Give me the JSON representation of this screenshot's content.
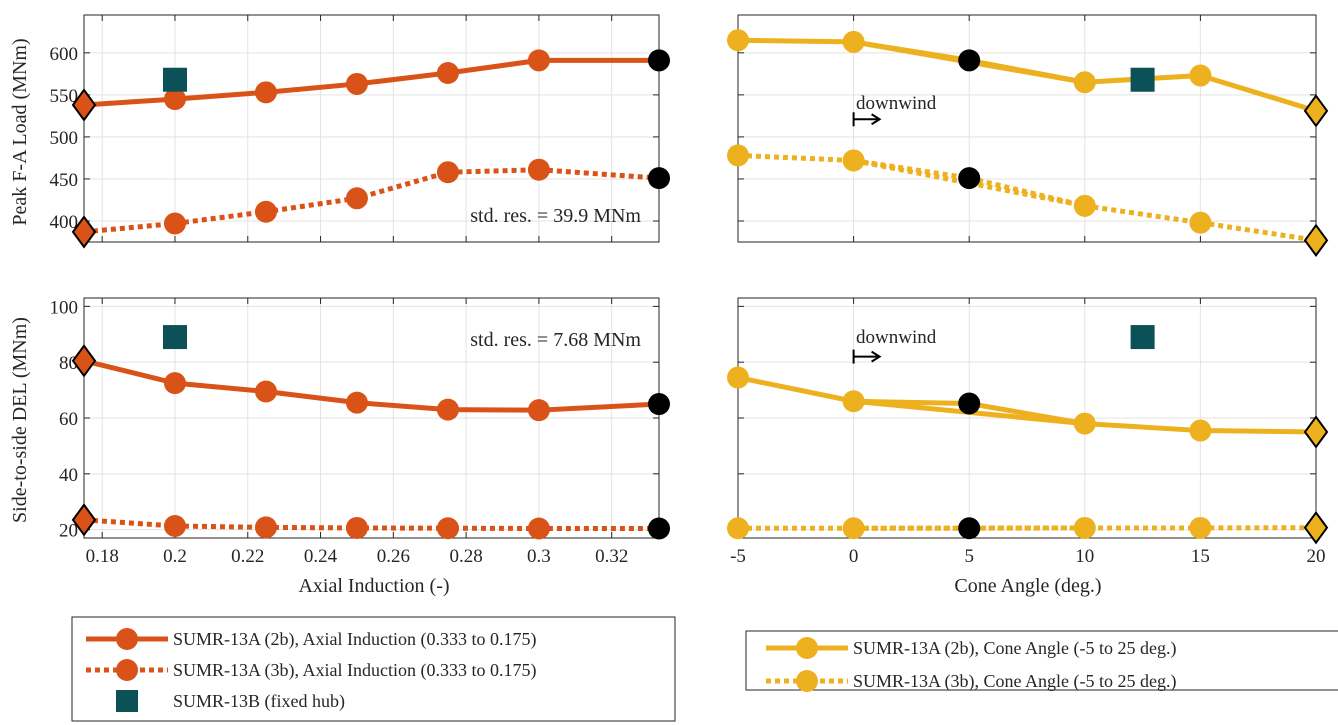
{
  "colors": {
    "induction": "#D95319",
    "cone": "#EDB120",
    "fixed_hub": "#0B5157",
    "baseline": "#000000",
    "grid": "#E3E3E3",
    "axis": "#262626"
  },
  "axis_labels": {
    "top_ylabel": "Peak F-A Load (MNm)",
    "bottom_ylabel": "Side-to-side DEL (MNm)",
    "left_xlabel": "Axial Induction (-)",
    "right_xlabel": "Cone Angle (deg.)"
  },
  "annotations": {
    "std_res_top": "std. res. = 39.9 MNm",
    "std_res_bottom": "std. res. = 7.68 MNm",
    "downwind_top": "downwind",
    "downwind_bottom": "downwind"
  },
  "legend_left": [
    {
      "label": "SUMR-13A (2b), Axial Induction (0.333 to 0.175)",
      "style": "solid",
      "color": "induction",
      "marker": "circle"
    },
    {
      "label": "SUMR-13A (3b), Axial Induction (0.333 to 0.175)",
      "style": "dotted",
      "color": "induction",
      "marker": "circle"
    },
    {
      "label": "SUMR-13B (fixed hub)",
      "style": "none",
      "color": "fixed_hub",
      "marker": "square"
    }
  ],
  "legend_right": [
    {
      "label": "SUMR-13A (2b), Cone Angle (-5 to 25 deg.)",
      "style": "solid",
      "color": "cone",
      "marker": "circle"
    },
    {
      "label": "SUMR-13A (3b), Cone Angle (-5 to 25 deg.)",
      "style": "dotted",
      "color": "cone",
      "marker": "circle"
    }
  ],
  "chart_data": [
    {
      "type": "line",
      "id": "induction-peak",
      "xlabel": "",
      "ylabel": "Peak F-A Load (MNm)",
      "xlim": [
        0.175,
        0.333
      ],
      "ylim": [
        375,
        645
      ],
      "xticks": [
        0.18,
        0.2,
        0.22,
        0.24,
        0.26,
        0.28,
        0.3,
        0.32
      ],
      "xtick_labels": [
        "",
        "",
        "",
        "",
        "",
        "",
        "",
        ""
      ],
      "yticks": [
        400,
        450,
        500,
        550,
        600
      ],
      "ytick_labels": [
        "400",
        "450",
        "500",
        "550",
        "600"
      ],
      "grid": true,
      "series": [
        {
          "style": "solid",
          "color": "induction",
          "x": [
            0.2,
            0.225,
            0.25,
            0.275,
            0.3
          ],
          "y": [
            545,
            553,
            563,
            576,
            591
          ]
        },
        {
          "style": "dotted",
          "color": "induction",
          "x": [
            0.2,
            0.225,
            0.25,
            0.275,
            0.3
          ],
          "y": [
            397,
            411,
            427,
            458,
            461
          ]
        }
      ],
      "connectors": [
        {
          "style": "solid",
          "color": "induction",
          "x": [
            0.175,
            0.2
          ],
          "y": [
            538,
            545
          ]
        },
        {
          "style": "solid",
          "color": "induction",
          "x": [
            0.3,
            0.333
          ],
          "y": [
            591,
            591
          ]
        },
        {
          "style": "dotted",
          "color": "induction",
          "x": [
            0.175,
            0.2
          ],
          "y": [
            387,
            397
          ]
        },
        {
          "style": "dotted",
          "color": "induction",
          "x": [
            0.3,
            0.333
          ],
          "y": [
            461,
            451
          ]
        }
      ],
      "diamonds": [
        {
          "x": 0.175,
          "y": 538,
          "color": "induction"
        },
        {
          "x": 0.175,
          "y": 387,
          "color": "induction"
        }
      ],
      "baseline_points": [
        {
          "x": 0.333,
          "y": 591
        },
        {
          "x": 0.333,
          "y": 451
        }
      ],
      "fixed_hub": [
        {
          "x": 0.2,
          "y": 568
        }
      ],
      "annotation": "std_res_top"
    },
    {
      "type": "line",
      "id": "cone-peak",
      "xlabel": "",
      "ylabel": "",
      "xlim": [
        -5,
        20
      ],
      "ylim": [
        375,
        645
      ],
      "xticks": [
        -5,
        0,
        5,
        10,
        15,
        20
      ],
      "xtick_labels": [
        "",
        "",
        "",
        "",
        "",
        ""
      ],
      "yticks": [
        400,
        450,
        500,
        550,
        600
      ],
      "ytick_labels": [
        "",
        "",
        "",
        "",
        ""
      ],
      "grid": true,
      "series": [
        {
          "style": "solid",
          "color": "cone",
          "x": [
            -5,
            0,
            10,
            15
          ],
          "y": [
            615,
            613,
            565,
            573
          ]
        },
        {
          "style": "dotted",
          "color": "cone",
          "x": [
            -5,
            0,
            10,
            15
          ],
          "y": [
            478,
            472,
            418,
            398
          ]
        }
      ],
      "connectors": [
        {
          "style": "solid",
          "color": "cone",
          "x": [
            0,
            5,
            10
          ],
          "y": [
            613,
            591,
            565
          ]
        },
        {
          "style": "solid",
          "color": "cone",
          "x": [
            15,
            20
          ],
          "y": [
            573,
            531
          ]
        },
        {
          "style": "dotted",
          "color": "cone",
          "x": [
            0,
            5,
            10
          ],
          "y": [
            472,
            451,
            418
          ]
        },
        {
          "style": "dotted",
          "color": "cone",
          "x": [
            15,
            20
          ],
          "y": [
            398,
            377
          ]
        }
      ],
      "diamonds": [
        {
          "x": 20,
          "y": 531,
          "color": "cone"
        },
        {
          "x": 20,
          "y": 377,
          "color": "cone"
        }
      ],
      "baseline_points": [
        {
          "x": 5,
          "y": 591
        },
        {
          "x": 5,
          "y": 451
        }
      ],
      "fixed_hub": [
        {
          "x": 12.5,
          "y": 568
        }
      ],
      "annotation": "downwind_top",
      "arrow_at": [
        0,
        521
      ]
    },
    {
      "type": "line",
      "id": "induction-del",
      "xlabel": "Axial Induction (-)",
      "ylabel": "Side-to-side DEL (MNm)",
      "xlim": [
        0.175,
        0.333
      ],
      "ylim": [
        17,
        103
      ],
      "xticks": [
        0.18,
        0.2,
        0.22,
        0.24,
        0.26,
        0.28,
        0.3,
        0.32
      ],
      "xtick_labels": [
        "0.18",
        "0.2",
        "0.22",
        "0.24",
        "0.26",
        "0.28",
        "0.3",
        "0.32"
      ],
      "yticks": [
        20,
        40,
        60,
        80,
        100
      ],
      "ytick_labels": [
        "20",
        "40",
        "60",
        "80",
        "100"
      ],
      "grid": true,
      "series": [
        {
          "style": "solid",
          "color": "induction",
          "x": [
            0.2,
            0.225,
            0.25,
            0.275,
            0.3
          ],
          "y": [
            72.5,
            69.5,
            65.5,
            63,
            62.8
          ]
        },
        {
          "style": "dotted",
          "color": "induction",
          "x": [
            0.2,
            0.225,
            0.25,
            0.275,
            0.3
          ],
          "y": [
            21.3,
            20.8,
            20.6,
            20.5,
            20.4
          ]
        }
      ],
      "connectors": [
        {
          "style": "solid",
          "color": "induction",
          "x": [
            0.175,
            0.2
          ],
          "y": [
            80.5,
            72.5
          ]
        },
        {
          "style": "solid",
          "color": "induction",
          "x": [
            0.3,
            0.333
          ],
          "y": [
            62.8,
            65
          ]
        },
        {
          "style": "dotted",
          "color": "induction",
          "x": [
            0.175,
            0.2
          ],
          "y": [
            23.5,
            21.3
          ]
        },
        {
          "style": "dotted",
          "color": "induction",
          "x": [
            0.3,
            0.333
          ],
          "y": [
            20.4,
            20.4
          ]
        }
      ],
      "diamonds": [
        {
          "x": 0.175,
          "y": 80.5,
          "color": "induction"
        },
        {
          "x": 0.175,
          "y": 23.5,
          "color": "induction"
        }
      ],
      "baseline_points": [
        {
          "x": 0.333,
          "y": 65
        },
        {
          "x": 0.333,
          "y": 20.4
        }
      ],
      "fixed_hub": [
        {
          "x": 0.2,
          "y": 89
        }
      ],
      "annotation": "std_res_bottom"
    },
    {
      "type": "line",
      "id": "cone-del",
      "xlabel": "Cone Angle (deg.)",
      "ylabel": "",
      "xlim": [
        -5,
        20
      ],
      "ylim": [
        17,
        103
      ],
      "xticks": [
        -5,
        0,
        5,
        10,
        15,
        20
      ],
      "xtick_labels": [
        "-5",
        "0",
        "5",
        "10",
        "15",
        "20"
      ],
      "yticks": [
        20,
        40,
        60,
        80,
        100
      ],
      "ytick_labels": [
        "",
        "",
        "",
        "",
        ""
      ],
      "grid": true,
      "series": [
        {
          "style": "solid",
          "color": "cone",
          "x": [
            -5,
            0,
            10,
            15
          ],
          "y": [
            74.5,
            66,
            58,
            55.5
          ]
        },
        {
          "style": "dotted",
          "color": "cone",
          "x": [
            -5,
            0,
            10,
            15
          ],
          "y": [
            20.5,
            20.5,
            20.6,
            20.6
          ]
        }
      ],
      "connectors": [
        {
          "style": "solid",
          "color": "cone",
          "x": [
            0,
            5,
            10
          ],
          "y": [
            66,
            65.2,
            58
          ]
        },
        {
          "style": "solid",
          "color": "cone",
          "x": [
            15,
            20
          ],
          "y": [
            55.5,
            55
          ]
        },
        {
          "style": "dotted",
          "color": "cone",
          "x": [
            0,
            5,
            10
          ],
          "y": [
            20.5,
            20.5,
            20.6
          ]
        },
        {
          "style": "dotted",
          "color": "cone",
          "x": [
            15,
            20
          ],
          "y": [
            20.6,
            20.7
          ]
        }
      ],
      "diamonds": [
        {
          "x": 20,
          "y": 55,
          "color": "cone"
        },
        {
          "x": 20,
          "y": 20.7,
          "color": "cone"
        }
      ],
      "baseline_points": [
        {
          "x": 5,
          "y": 65.2
        },
        {
          "x": 5,
          "y": 20.5
        }
      ],
      "fixed_hub": [
        {
          "x": 12.5,
          "y": 89
        }
      ],
      "annotation": "downwind_bottom",
      "arrow_at": [
        0,
        82
      ]
    }
  ]
}
